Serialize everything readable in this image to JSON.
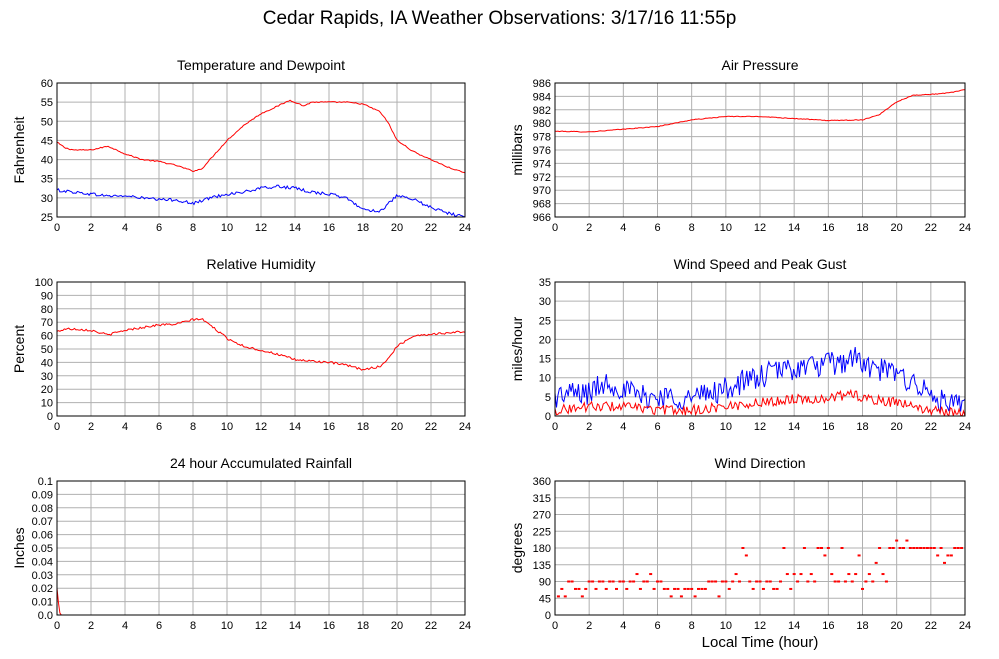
{
  "page": {
    "title": "Cedar Rapids, IA Weather Observations: 3/17/16 11:55p",
    "x_axis_label": "Local Time (hour)"
  },
  "colors": {
    "red": "#ff0000",
    "blue": "#0000ff",
    "grid": "#b0b0b0",
    "frame": "#000000"
  },
  "chart_data": [
    {
      "id": "temp",
      "type": "line",
      "title": "Temperature and Dewpoint",
      "ylabel": "Fahrenheit",
      "xlim": [
        0,
        24
      ],
      "ylim": [
        25,
        60
      ],
      "xticks": [
        0,
        2,
        4,
        6,
        8,
        10,
        12,
        14,
        16,
        18,
        20,
        22,
        24
      ],
      "yticks": [
        25,
        30,
        35,
        40,
        45,
        50,
        55,
        60
      ],
      "grid": true,
      "series": [
        {
          "color": "#ff0000",
          "noise": 0.15,
          "x": [
            0,
            0.5,
            1,
            2,
            3,
            4,
            5,
            6,
            7,
            8,
            8.5,
            9,
            10,
            11,
            12,
            13,
            13.7,
            14,
            14.5,
            15,
            16,
            17,
            18,
            19,
            19.5,
            20,
            21,
            22,
            23,
            24
          ],
          "y": [
            44.5,
            43,
            42.5,
            42.5,
            43.5,
            41.5,
            40,
            39.5,
            38.5,
            37,
            37.5,
            40,
            45,
            49,
            52,
            54,
            55.5,
            55,
            54,
            55,
            55,
            55,
            54.5,
            52.5,
            49.5,
            45,
            42,
            40,
            38,
            36.5
          ]
        },
        {
          "color": "#0000ff",
          "noise": 0.4,
          "x": [
            0,
            1,
            2,
            3,
            4,
            5,
            6,
            7,
            8,
            9,
            10,
            11,
            12,
            13,
            14,
            15,
            16,
            17,
            18,
            19,
            20,
            21,
            22,
            23,
            24
          ],
          "y": [
            32,
            31.5,
            31,
            30.5,
            30.5,
            30,
            29.5,
            29.5,
            28.5,
            30,
            31,
            31.5,
            32.5,
            33,
            32.5,
            31.5,
            31,
            30,
            27,
            26.5,
            30.5,
            29.5,
            27.5,
            26,
            25
          ]
        }
      ]
    },
    {
      "id": "pressure",
      "type": "line",
      "title": "Air Pressure",
      "ylabel": "millibars",
      "xlim": [
        0,
        24
      ],
      "ylim": [
        966,
        986
      ],
      "xticks": [
        0,
        2,
        4,
        6,
        8,
        10,
        12,
        14,
        16,
        18,
        20,
        22,
        24
      ],
      "yticks": [
        966,
        968,
        970,
        972,
        974,
        976,
        978,
        980,
        982,
        984,
        986
      ],
      "grid": true,
      "series": [
        {
          "color": "#ff0000",
          "noise": 0.05,
          "x": [
            0,
            2,
            4,
            6,
            8,
            10,
            12,
            14,
            16,
            18,
            19,
            20,
            21,
            22,
            23,
            24
          ],
          "y": [
            978.8,
            978.7,
            979.1,
            979.5,
            980.5,
            981,
            981,
            980.7,
            980.4,
            980.5,
            981.3,
            983.2,
            984.2,
            984.3,
            984.5,
            985
          ]
        }
      ]
    },
    {
      "id": "rh",
      "type": "line",
      "title": "Relative Humidity",
      "ylabel": "Percent",
      "xlim": [
        0,
        24
      ],
      "ylim": [
        0,
        100
      ],
      "xticks": [
        0,
        2,
        4,
        6,
        8,
        10,
        12,
        14,
        16,
        18,
        20,
        22,
        24
      ],
      "yticks": [
        0,
        10,
        20,
        30,
        40,
        50,
        60,
        70,
        80,
        90,
        100
      ],
      "grid": true,
      "series": [
        {
          "color": "#ff0000",
          "noise": 0.8,
          "x": [
            0,
            0.5,
            1,
            2,
            3,
            4,
            5,
            6,
            7,
            8,
            8.5,
            9,
            10,
            11,
            12,
            13,
            14,
            15,
            16,
            17,
            18,
            19,
            19.5,
            20,
            21,
            22,
            23,
            24
          ],
          "y": [
            63,
            65,
            65,
            64,
            60.5,
            64,
            66,
            68,
            68.5,
            72,
            72.5,
            68,
            58,
            52,
            49,
            46,
            42,
            41,
            40,
            38,
            34.5,
            37,
            43,
            52,
            60,
            61,
            62,
            63
          ]
        }
      ]
    },
    {
      "id": "wind",
      "type": "line",
      "title": "Wind Speed and Peak Gust",
      "ylabel": "miles/hour",
      "xlim": [
        0,
        24
      ],
      "ylim": [
        0,
        35
      ],
      "xticks": [
        0,
        2,
        4,
        6,
        8,
        10,
        12,
        14,
        16,
        18,
        20,
        22,
        24
      ],
      "yticks": [
        0,
        5,
        10,
        15,
        20,
        25,
        30,
        35
      ],
      "grid": true,
      "series": [
        {
          "color": "#0000ff",
          "noise": 3.2,
          "x": [
            0,
            1,
            2,
            3,
            4,
            5,
            6,
            7,
            8,
            9,
            10,
            11,
            12,
            13,
            14,
            15,
            16,
            17,
            17.5,
            18,
            19,
            20,
            21,
            22,
            23,
            24
          ],
          "y": [
            5,
            6,
            6,
            9,
            7,
            5,
            5,
            5,
            4.5,
            6,
            7,
            9,
            10,
            12,
            12.5,
            13,
            13.5,
            14,
            16,
            13,
            12,
            11,
            9,
            5,
            3,
            2
          ]
        },
        {
          "color": "#ff0000",
          "noise": 1.3,
          "x": [
            0,
            2,
            4,
            6,
            8,
            10,
            12,
            14,
            16,
            17.5,
            18,
            20,
            22,
            24
          ],
          "y": [
            1.5,
            2.5,
            2.5,
            1.5,
            1.5,
            2.5,
            3.5,
            4.5,
            4.5,
            6,
            4.5,
            3.5,
            1.5,
            0.5
          ]
        }
      ]
    },
    {
      "id": "rain",
      "type": "line",
      "title": "24 hour Accumulated Rainfall",
      "ylabel": "Inches",
      "xlim": [
        0,
        24
      ],
      "ylim": [
        0,
        0.1
      ],
      "xticks": [
        0,
        2,
        4,
        6,
        8,
        10,
        12,
        14,
        16,
        18,
        20,
        22,
        24
      ],
      "yticks": [
        0.0,
        0.01,
        0.02,
        0.03,
        0.04,
        0.05,
        0.06,
        0.07,
        0.08,
        0.09,
        0.1
      ],
      "ytick_labels": [
        "0.0",
        "0.01",
        "0.02",
        "0.03",
        "0.04",
        "0.05",
        "0.06",
        "0.07",
        "0.08",
        "0.09",
        "0.1"
      ],
      "grid": true,
      "series": [
        {
          "color": "#ff0000",
          "noise": 0,
          "x": [
            0,
            0.05,
            0.12,
            0.2,
            24
          ],
          "y": [
            0.02,
            0.014,
            0.004,
            0.0,
            0.0
          ]
        }
      ]
    },
    {
      "id": "dir",
      "type": "scatter",
      "title": "Wind Direction",
      "ylabel": "degrees",
      "xlim": [
        0,
        24
      ],
      "ylim": [
        0,
        360
      ],
      "xticks": [
        0,
        2,
        4,
        6,
        8,
        10,
        12,
        14,
        16,
        18,
        20,
        22,
        24
      ],
      "yticks": [
        0,
        45,
        90,
        135,
        180,
        225,
        270,
        315,
        360
      ],
      "grid": true,
      "series": [
        {
          "color": "#ff0000",
          "marker": "dot",
          "points": [
            [
              0.2,
              50
            ],
            [
              0.4,
              70
            ],
            [
              0.6,
              50
            ],
            [
              0.8,
              90
            ],
            [
              1.0,
              90
            ],
            [
              1.2,
              70
            ],
            [
              1.4,
              70
            ],
            [
              1.6,
              50
            ],
            [
              1.8,
              70
            ],
            [
              2.0,
              90
            ],
            [
              2.2,
              90
            ],
            [
              2.4,
              70
            ],
            [
              2.6,
              90
            ],
            [
              2.8,
              90
            ],
            [
              3.0,
              70
            ],
            [
              3.2,
              90
            ],
            [
              3.4,
              90
            ],
            [
              3.6,
              70
            ],
            [
              3.8,
              90
            ],
            [
              4.0,
              90
            ],
            [
              4.2,
              70
            ],
            [
              4.4,
              90
            ],
            [
              4.6,
              90
            ],
            [
              4.8,
              110
            ],
            [
              5.0,
              70
            ],
            [
              5.2,
              90
            ],
            [
              5.4,
              90
            ],
            [
              5.6,
              110
            ],
            [
              5.8,
              70
            ],
            [
              6.0,
              90
            ],
            [
              6.2,
              90
            ],
            [
              6.4,
              70
            ],
            [
              6.6,
              70
            ],
            [
              6.8,
              50
            ],
            [
              7.0,
              70
            ],
            [
              7.2,
              70
            ],
            [
              7.4,
              50
            ],
            [
              7.6,
              70
            ],
            [
              7.8,
              70
            ],
            [
              8.0,
              70
            ],
            [
              8.2,
              50
            ],
            [
              8.4,
              70
            ],
            [
              8.6,
              70
            ],
            [
              8.8,
              70
            ],
            [
              9.0,
              90
            ],
            [
              9.2,
              90
            ],
            [
              9.4,
              90
            ],
            [
              9.6,
              50
            ],
            [
              9.8,
              90
            ],
            [
              10.0,
              90
            ],
            [
              10.2,
              70
            ],
            [
              10.4,
              90
            ],
            [
              10.6,
              110
            ],
            [
              10.8,
              90
            ],
            [
              11.0,
              180
            ],
            [
              11.2,
              160
            ],
            [
              11.4,
              90
            ],
            [
              11.6,
              70
            ],
            [
              11.8,
              90
            ],
            [
              12.0,
              90
            ],
            [
              12.2,
              70
            ],
            [
              12.4,
              90
            ],
            [
              12.6,
              90
            ],
            [
              12.8,
              70
            ],
            [
              13.0,
              70
            ],
            [
              13.2,
              90
            ],
            [
              13.4,
              180
            ],
            [
              13.6,
              110
            ],
            [
              13.8,
              70
            ],
            [
              14.0,
              110
            ],
            [
              14.2,
              90
            ],
            [
              14.4,
              110
            ],
            [
              14.6,
              180
            ],
            [
              14.8,
              90
            ],
            [
              15.0,
              110
            ],
            [
              15.2,
              90
            ],
            [
              15.4,
              180
            ],
            [
              15.6,
              180
            ],
            [
              15.8,
              160
            ],
            [
              16.0,
              180
            ],
            [
              16.2,
              110
            ],
            [
              16.4,
              90
            ],
            [
              16.6,
              90
            ],
            [
              16.8,
              180
            ],
            [
              17.0,
              90
            ],
            [
              17.2,
              110
            ],
            [
              17.4,
              90
            ],
            [
              17.6,
              110
            ],
            [
              17.8,
              160
            ],
            [
              18.0,
              70
            ],
            [
              18.2,
              90
            ],
            [
              18.4,
              110
            ],
            [
              18.6,
              90
            ],
            [
              18.8,
              140
            ],
            [
              19.0,
              180
            ],
            [
              19.2,
              110
            ],
            [
              19.4,
              90
            ],
            [
              19.6,
              180
            ],
            [
              19.8,
              180
            ],
            [
              20.0,
              200
            ],
            [
              20.2,
              180
            ],
            [
              20.4,
              180
            ],
            [
              20.6,
              200
            ],
            [
              20.8,
              180
            ],
            [
              21.0,
              180
            ],
            [
              21.2,
              180
            ],
            [
              21.4,
              180
            ],
            [
              21.6,
              180
            ],
            [
              21.8,
              180
            ],
            [
              22.0,
              180
            ],
            [
              22.2,
              180
            ],
            [
              22.4,
              160
            ],
            [
              22.6,
              180
            ],
            [
              22.8,
              140
            ],
            [
              23.0,
              160
            ],
            [
              23.2,
              160
            ],
            [
              23.4,
              180
            ],
            [
              23.6,
              180
            ],
            [
              23.8,
              180
            ]
          ]
        }
      ]
    }
  ]
}
